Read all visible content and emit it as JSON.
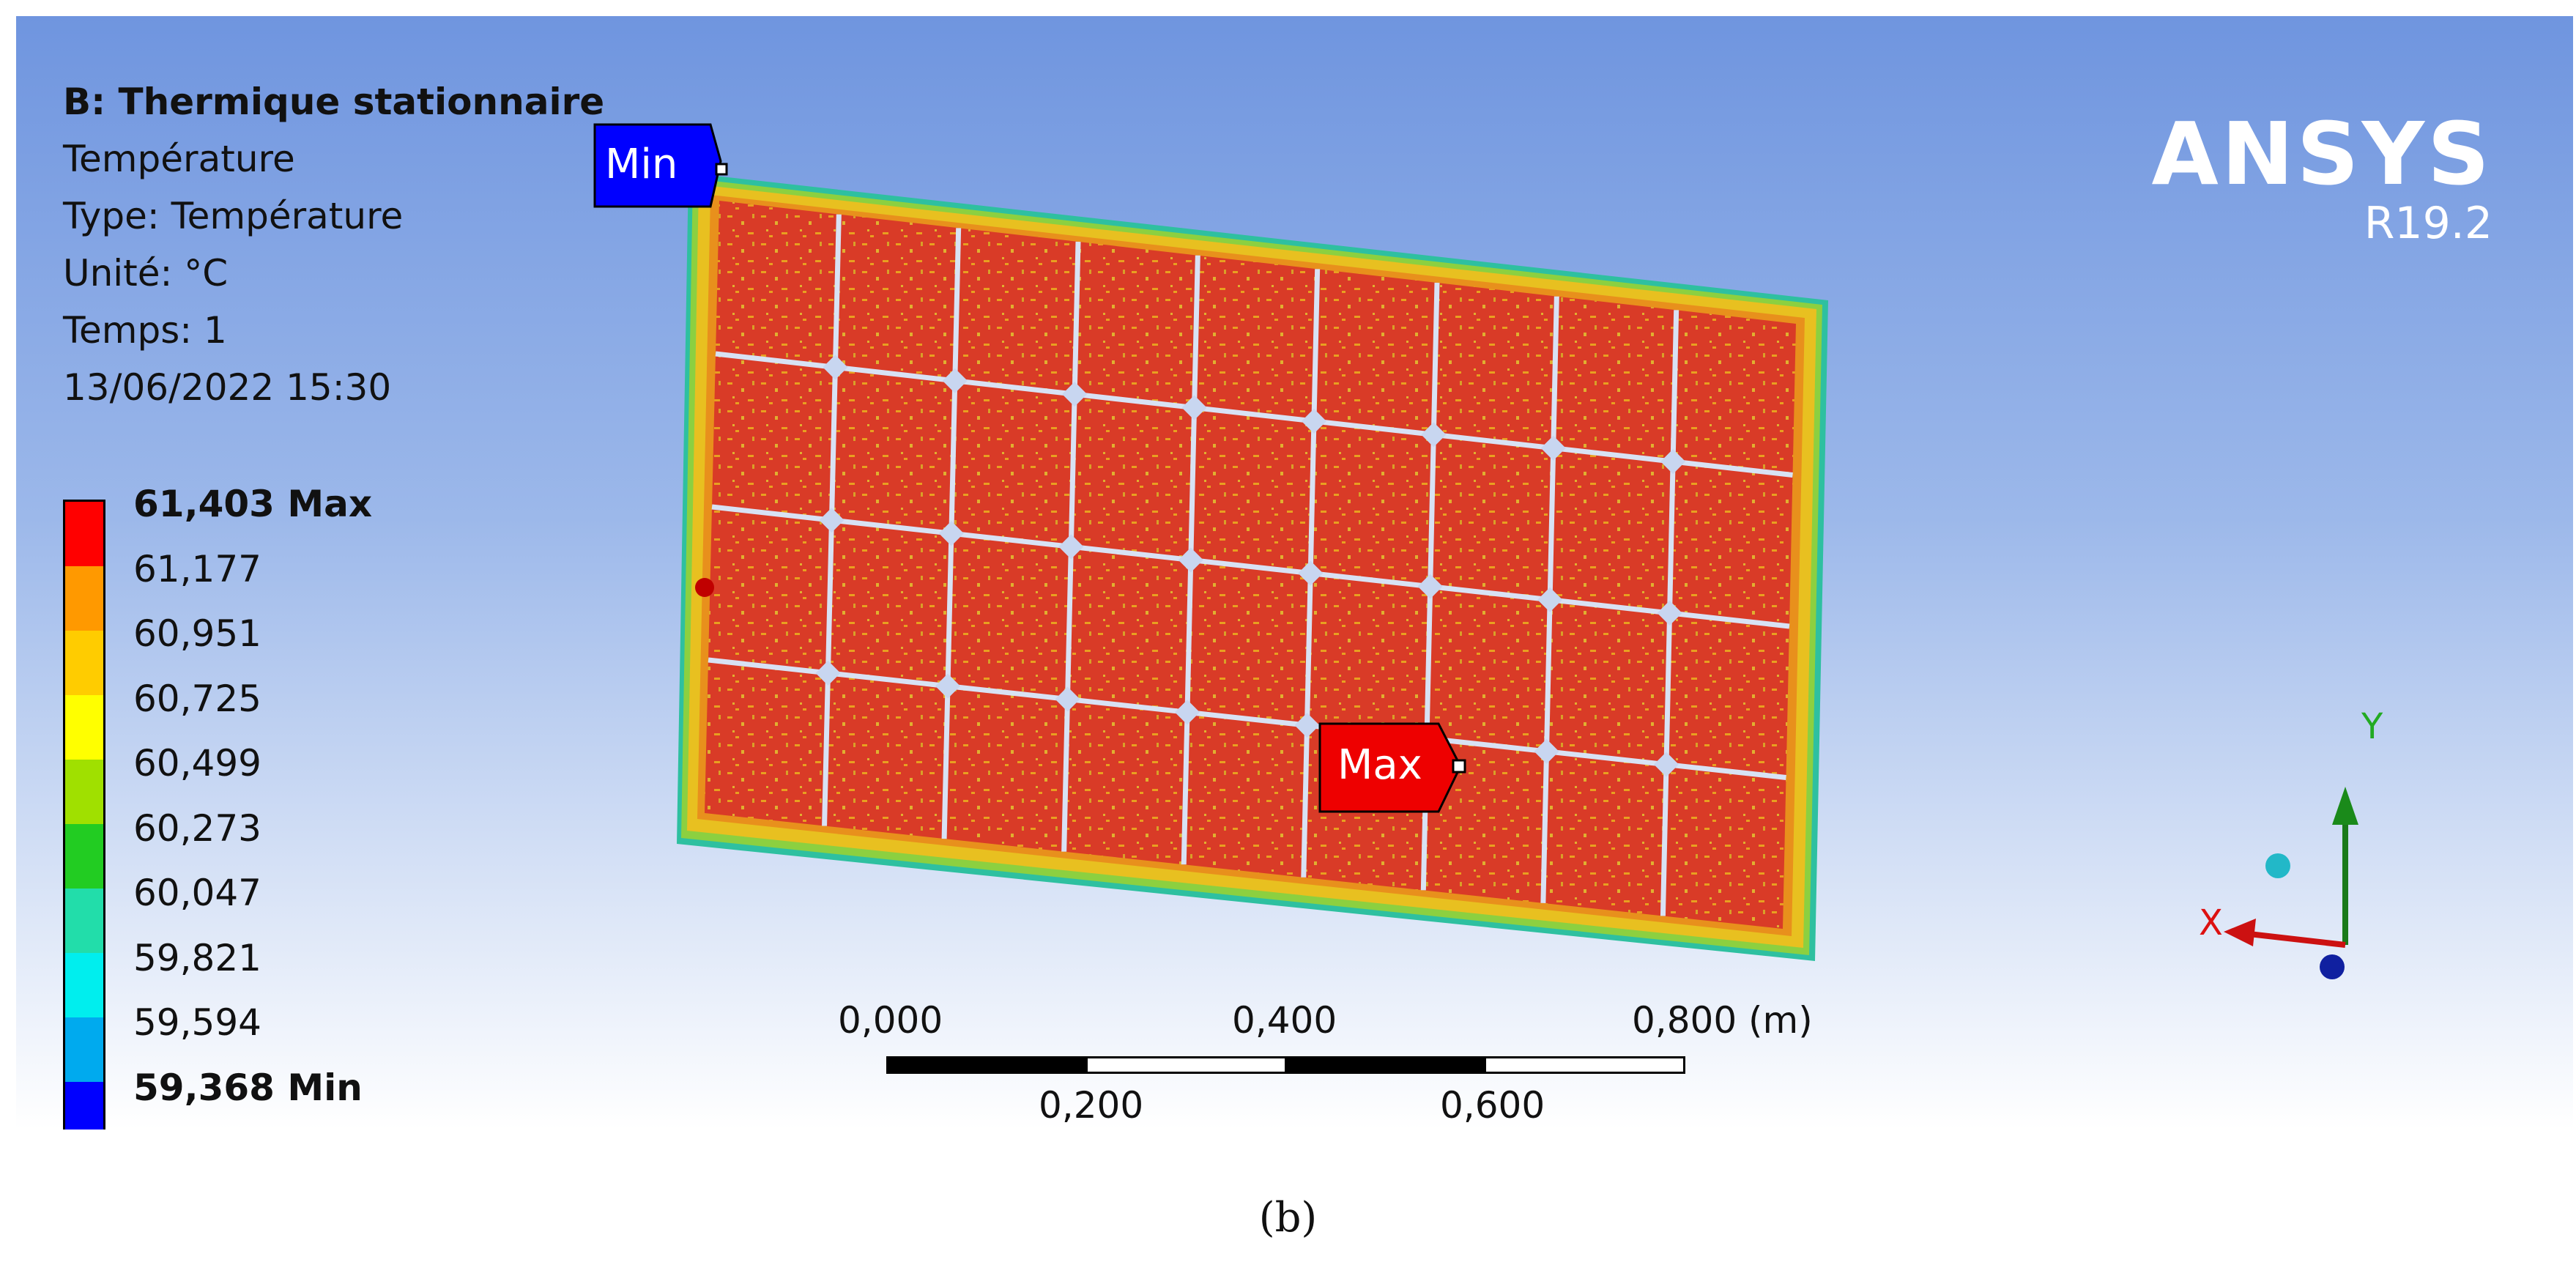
{
  "info": {
    "analysis_title": "B: Thermique stationnaire",
    "result": "Température",
    "type": "Type: Température",
    "unit": "Unité: °C",
    "time": "Temps: 1",
    "date": "13/06/2022 15:30"
  },
  "legend": {
    "max_label": "61,403 Max",
    "values": [
      "61,177",
      "60,951",
      "60,725",
      "60,499",
      "60,273",
      "60,047",
      "59,821",
      "59,594"
    ],
    "min_label": "59,368 Min",
    "colors": [
      "#ff0000",
      "#ff9900",
      "#ffcc00",
      "#ffff00",
      "#a0e000",
      "#22cc22",
      "#22ddaa",
      "#00eeee",
      "#00aaee",
      "#0000ff"
    ]
  },
  "logo": {
    "brand": "ANSYS",
    "version": "R19.2"
  },
  "probes": {
    "min": "Min",
    "max": "Max"
  },
  "scale": {
    "top_labels": [
      "0,000",
      "0,400",
      "0,800 (m)"
    ],
    "bottom_labels": [
      "0,200",
      "0,600"
    ]
  },
  "triad": {
    "x": "X",
    "y": "Y"
  },
  "caption": "(b)"
}
